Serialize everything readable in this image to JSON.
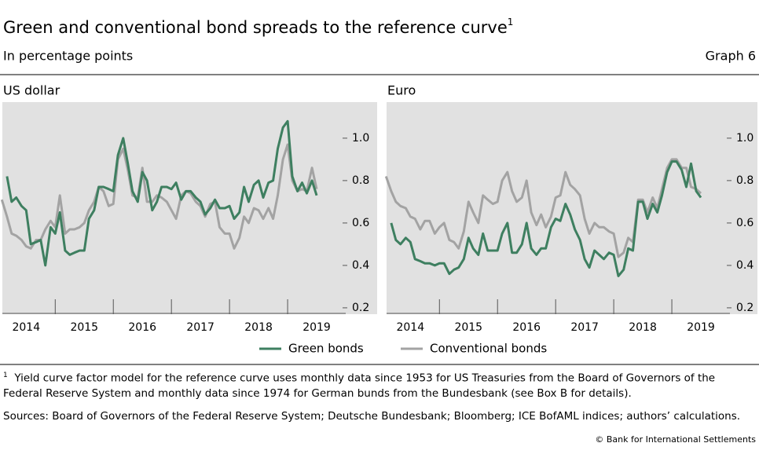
{
  "title": "Green and conventional bond spreads to the reference curve",
  "title_note": "1",
  "subtitle": "In percentage points",
  "graph_label": "Graph 6",
  "chart_data": [
    {
      "type": "line",
      "title": "US dollar",
      "x": [
        2014.08,
        2014.17,
        2014.25,
        2014.33,
        2014.42,
        2014.5,
        2014.58,
        2014.67,
        2014.75,
        2014.83,
        2014.92,
        2015,
        2015.08,
        2015.17,
        2015.25,
        2015.33,
        2015.42,
        2015.5,
        2015.58,
        2015.67,
        2015.75,
        2015.83,
        2015.92,
        2016,
        2016.08,
        2016.17,
        2016.25,
        2016.33,
        2016.42,
        2016.5,
        2016.58,
        2016.67,
        2016.75,
        2016.83,
        2016.92,
        2017,
        2017.08,
        2017.17,
        2017.25,
        2017.33,
        2017.42,
        2017.5,
        2017.58,
        2017.67,
        2017.75,
        2017.83,
        2017.92,
        2018,
        2018.08,
        2018.17,
        2018.25,
        2018.33,
        2018.42,
        2018.5,
        2018.58,
        2018.67,
        2018.75,
        2018.83,
        2018.92,
        2019,
        2019.08,
        2019.17,
        2019.25,
        2019.33,
        2019.42,
        2019.5
      ],
      "series": [
        {
          "name": "Green bonds",
          "color": "#3e7f60",
          "values": [
            null,
            0.82,
            0.7,
            0.72,
            0.68,
            0.66,
            0.5,
            0.51,
            0.52,
            0.4,
            0.58,
            0.55,
            0.65,
            0.47,
            0.45,
            0.46,
            0.47,
            0.47,
            0.62,
            0.66,
            0.77,
            0.77,
            0.76,
            0.75,
            0.92,
            1.0,
            0.88,
            0.75,
            0.7,
            0.84,
            0.8,
            0.66,
            0.7,
            0.77,
            0.77,
            0.76,
            0.79,
            0.71,
            0.75,
            0.75,
            0.72,
            0.7,
            0.64,
            0.67,
            0.71,
            0.67,
            0.67,
            0.68,
            0.62,
            0.65,
            0.77,
            0.7,
            0.78,
            0.8,
            0.72,
            0.79,
            0.8,
            0.95,
            1.05,
            1.08,
            0.82,
            0.75,
            0.79,
            0.74,
            0.8,
            0.73
          ]
        },
        {
          "name": "Conventional bonds",
          "color": "#a3a3a3",
          "values": [
            0.71,
            0.63,
            0.55,
            0.54,
            0.52,
            0.49,
            0.48,
            0.52,
            0.52,
            0.57,
            0.61,
            0.58,
            0.73,
            0.55,
            0.57,
            0.57,
            0.58,
            0.6,
            0.66,
            0.7,
            0.77,
            0.75,
            0.68,
            0.69,
            0.9,
            0.95,
            0.85,
            0.73,
            0.72,
            0.86,
            0.7,
            0.7,
            0.73,
            0.72,
            0.7,
            0.66,
            0.62,
            0.73,
            0.75,
            0.74,
            0.7,
            0.68,
            0.63,
            0.69,
            0.7,
            0.58,
            0.55,
            0.55,
            0.48,
            0.53,
            0.63,
            0.6,
            0.67,
            0.66,
            0.62,
            0.67,
            0.62,
            0.73,
            0.9,
            0.97,
            0.8,
            0.75,
            0.76,
            0.75,
            0.86,
            0.76
          ]
        }
      ],
      "xlim": [
        2014.09,
        2020
      ],
      "xticks": [
        2014,
        2015,
        2016,
        2017,
        2018,
        2019
      ],
      "ylim": [
        0.17,
        1.17
      ],
      "yticks": [
        0.2,
        0.4,
        0.6,
        0.8,
        {
          "value": 1,
          "label": "1.0"
        }
      ]
    },
    {
      "type": "line",
      "title": "Euro",
      "x": [
        2014.08,
        2014.17,
        2014.25,
        2014.33,
        2014.42,
        2014.5,
        2014.58,
        2014.67,
        2014.75,
        2014.83,
        2014.92,
        2015,
        2015.08,
        2015.17,
        2015.25,
        2015.33,
        2015.42,
        2015.5,
        2015.58,
        2015.67,
        2015.75,
        2015.83,
        2015.92,
        2016,
        2016.08,
        2016.17,
        2016.25,
        2016.33,
        2016.42,
        2016.5,
        2016.58,
        2016.67,
        2016.75,
        2016.83,
        2016.92,
        2017,
        2017.08,
        2017.17,
        2017.25,
        2017.33,
        2017.42,
        2017.5,
        2017.58,
        2017.67,
        2017.75,
        2017.83,
        2017.92,
        2018,
        2018.08,
        2018.17,
        2018.25,
        2018.33,
        2018.42,
        2018.5,
        2018.58,
        2018.67,
        2018.75,
        2018.83,
        2018.92,
        2019,
        2019.08,
        2019.17,
        2019.25,
        2019.33,
        2019.42,
        2019.5
      ],
      "series": [
        {
          "name": "Green bonds",
          "color": "#3e7f60",
          "values": [
            null,
            0.6,
            0.52,
            0.5,
            0.53,
            0.51,
            0.43,
            0.42,
            0.41,
            0.41,
            0.4,
            0.41,
            0.41,
            0.36,
            0.38,
            0.39,
            0.43,
            0.53,
            0.48,
            0.45,
            0.55,
            0.47,
            0.47,
            0.47,
            0.55,
            0.6,
            0.46,
            0.46,
            0.5,
            0.6,
            0.48,
            0.45,
            0.48,
            0.48,
            0.58,
            0.62,
            0.61,
            0.69,
            0.64,
            0.57,
            0.52,
            0.43,
            0.39,
            0.47,
            0.45,
            0.43,
            0.46,
            0.45,
            0.35,
            0.38,
            0.48,
            0.47,
            0.7,
            0.7,
            0.62,
            0.69,
            0.65,
            0.73,
            0.84,
            0.89,
            0.89,
            0.85,
            0.77,
            0.88,
            0.75,
            0.72
          ]
        },
        {
          "name": "Conventional bonds",
          "color": "#a3a3a3",
          "values": [
            0.82,
            0.75,
            0.7,
            0.68,
            0.67,
            0.63,
            0.62,
            0.57,
            0.61,
            0.61,
            0.55,
            0.58,
            0.6,
            0.52,
            0.51,
            0.48,
            0.56,
            0.7,
            0.65,
            0.6,
            0.73,
            0.71,
            0.69,
            0.7,
            0.8,
            0.84,
            0.75,
            0.7,
            0.72,
            0.8,
            0.65,
            0.59,
            0.64,
            0.58,
            0.63,
            0.72,
            0.73,
            0.84,
            0.78,
            0.76,
            0.73,
            0.62,
            0.55,
            0.6,
            0.58,
            0.58,
            0.56,
            0.55,
            0.44,
            0.46,
            0.53,
            0.51,
            0.71,
            0.71,
            0.65,
            0.72,
            0.67,
            0.76,
            0.86,
            0.9,
            0.9,
            0.86,
            0.86,
            0.77,
            0.76,
            0.74
          ]
        }
      ],
      "xlim": [
        2014.09,
        2020
      ],
      "xticks": [
        2014,
        2015,
        2016,
        2017,
        2018,
        2019
      ],
      "ylim": [
        0.17,
        1.17
      ],
      "yticks": [
        0.2,
        0.4,
        0.6,
        0.8,
        {
          "value": 1,
          "label": "1.0"
        }
      ]
    }
  ],
  "footnote": {
    "marker": "1",
    "text": "Yield curve factor model for the reference curve uses monthly data since 1953 for US Treasuries from the Board of Governors of the Federal Reserve System and monthly data since 1974 for German bunds from the Bundesbank (see Box B for details)."
  },
  "sources": "Sources: Board of Governors of the Federal Reserve System; Deutsche Bundesbank; Bloomberg; ICE BofAML indices; authors’ calculations.",
  "copyright": "© Bank for International Settlements"
}
